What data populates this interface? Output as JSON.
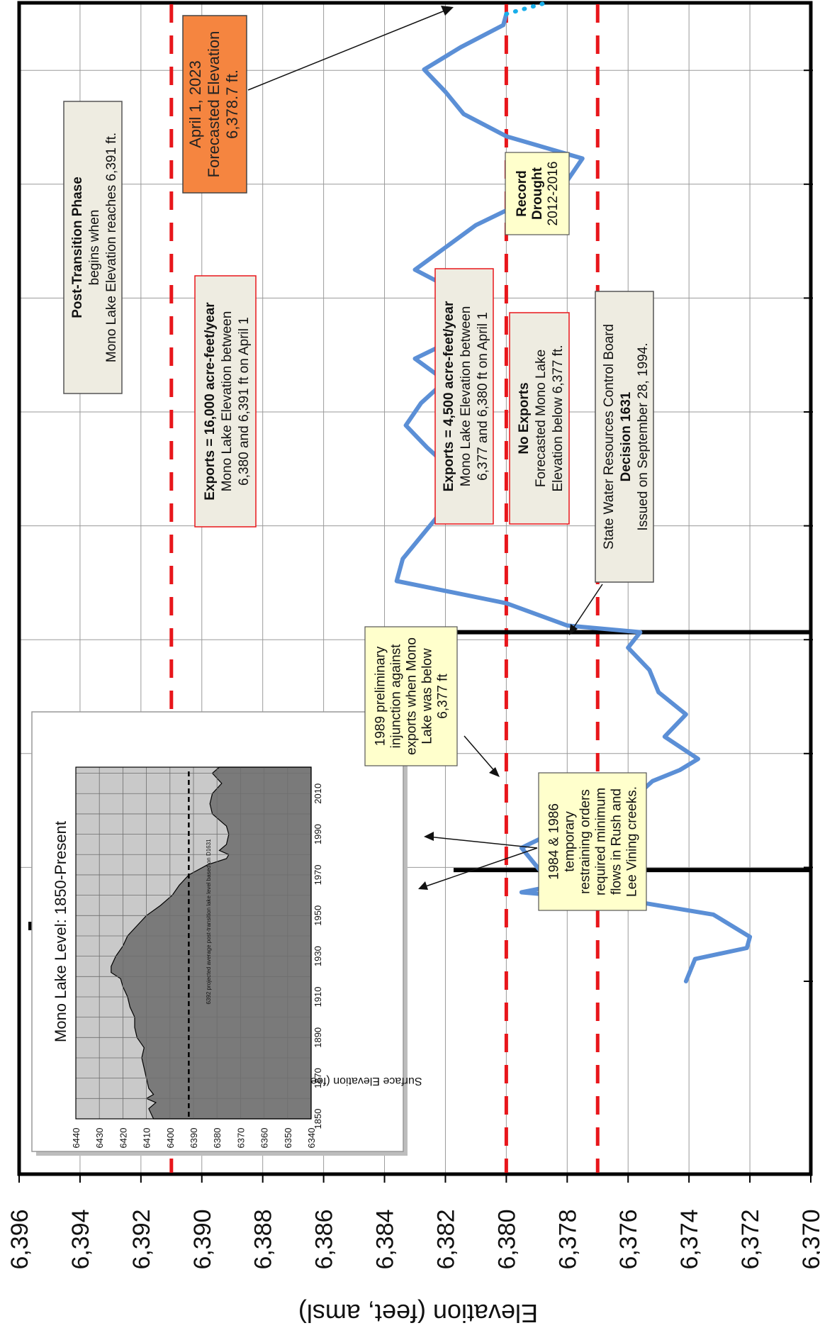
{
  "chart_data": {
    "type": "line",
    "orientation": "rotated-90-clockwise",
    "ylabel": "Elevation (feet, amsl)",
    "ylim": [
      6370,
      6396
    ],
    "y_ticks": [
      "6,370",
      "6,372",
      "6,374",
      "6,376",
      "6,378",
      "6,380",
      "6,382",
      "6,384",
      "6,386",
      "6,388",
      "6,390",
      "6,392",
      "6,394",
      "6,396"
    ],
    "xlim": [
      1979,
      2023
    ],
    "grid": true,
    "thresholds": [
      {
        "value": 6391,
        "style": "dashed",
        "color": "#e8161b"
      },
      {
        "value": 6380,
        "style": "dashed",
        "color": "#e8161b"
      },
      {
        "value": 6377,
        "style": "dashed",
        "color": "#e8161b"
      }
    ],
    "event_lines": [
      1984,
      1994.7
    ],
    "series": [
      {
        "color": "#5b8fd6",
        "x": [
          1979,
          1980,
          1980.5,
          1981,
          1982,
          1982.5,
          1983,
          1983.5,
          1984,
          1985,
          1986,
          1986.5,
          1987,
          1988,
          1988.5,
          1989,
          1990,
          1991,
          1992,
          1993,
          1994,
          1994.7,
          1995,
          1996,
          1997,
          1998,
          1999,
          2000,
          2001,
          2002,
          2003,
          2004,
          2005,
          2006,
          2007,
          2008,
          2009,
          2010,
          2011,
          2012,
          2013,
          2014,
          2015,
          2016,
          2017,
          2018,
          2019,
          2020,
          2021,
          2022,
          2022.5
        ],
        "values": [
          6374.1,
          6373.8,
          6372.1,
          6372.0,
          6373.2,
          6375.4,
          6379.5,
          6377.7,
          6378.9,
          6379.5,
          6378.0,
          6376.8,
          6376.0,
          6375.2,
          6374.3,
          6373.7,
          6374.8,
          6374.1,
          6375.0,
          6375.3,
          6376.0,
          6375.6,
          6378.0,
          6380.0,
          6383.6,
          6383.4,
          6382.8,
          6382.2,
          6381.0,
          6381.8,
          6382.6,
          6383.3,
          6382.8,
          6382.0,
          6383.0,
          6381.5,
          6381.0,
          6381.6,
          6383.0,
          6382.0,
          6381.0,
          6379.5,
          6378.0,
          6377.5,
          6380.0,
          6381.4,
          6382.0,
          6382.7,
          6381.5,
          6380.1,
          6380.0
        ]
      },
      {
        "color": "#19aeea",
        "style": "dotted",
        "x": [
          2022.5,
          2023
        ],
        "values": [
          6380.0,
          6378.7
        ]
      }
    ]
  },
  "annotations": {
    "post_transition": {
      "bold": "Post-Transition Phase",
      "line2": "begins when",
      "line3": "Mono Lake Elevation reaches 6,391 ft."
    },
    "forecast": {
      "line1": "April 1, 2023",
      "line2": "Forecasted Elevation",
      "line3": "6,378.7 ft."
    },
    "record_drought": {
      "line1": "Record",
      "line2": "Drought",
      "line3": "2012-2016"
    },
    "exports_16000": {
      "bold": "Exports = 16,000 acre-feet/year",
      "line2": "Mono Lake Elevation between",
      "line3": "6,380 and 6,391 ft on April 1"
    },
    "exports_4500": {
      "bold": "Exports = 4,500 acre-feet/year",
      "line2": "Mono Lake Elevation between",
      "line3": "6,377 and 6,380 ft on April 1"
    },
    "no_exports": {
      "bold": "No Exports",
      "line2": "Forecasted Mono Lake",
      "line3": "Elevation below 6,377 ft."
    },
    "decision": {
      "line1": "State Water Resources Control Board",
      "bold": "Decision 1631",
      "line3": "Issued on September 28, 1994."
    },
    "injunction": {
      "lines": [
        "1989 preliminary",
        "injunction against",
        "exports when Mono",
        "Lake was below",
        "6,377 ft"
      ]
    },
    "restraining": {
      "lines": [
        "1984 & 1986",
        "temporary",
        "restraining orders",
        "required minimum",
        "flows in Rush and",
        "Lee Vining creeks."
      ]
    }
  },
  "inset": {
    "title": "Mono Lake Level: 1850-Present",
    "ylabel": "Surface Elevation (feet)",
    "dashed_label": "6392 projected average post-transition lake level based on D1631",
    "y_ticks": [
      "6340",
      "6350",
      "6360",
      "6370",
      "6380",
      "6390",
      "6400",
      "6410",
      "6420",
      "6430",
      "6440"
    ],
    "x_ticks": [
      "1850",
      "1870",
      "1890",
      "1910",
      "1930",
      "1950",
      "1970",
      "1990",
      "2010"
    ],
    "chart_data": {
      "type": "area",
      "xlim": [
        1850,
        2023
      ],
      "ylim": [
        6340,
        6440
      ],
      "dashed_value": 6392,
      "x": [
        1850,
        1855,
        1858,
        1860,
        1862,
        1865,
        1870,
        1875,
        1880,
        1885,
        1890,
        1895,
        1900,
        1905,
        1910,
        1915,
        1919,
        1922,
        1925,
        1930,
        1935,
        1940,
        1945,
        1950,
        1955,
        1960,
        1965,
        1970,
        1975,
        1978,
        1980,
        1982,
        1985,
        1990,
        1994,
        1995,
        2000,
        2005,
        2010,
        2015,
        2020,
        2023
      ],
      "values": [
        6407,
        6409,
        6406,
        6410,
        6407,
        6409,
        6410,
        6411,
        6412,
        6411,
        6414,
        6415,
        6415,
        6417,
        6418,
        6420,
        6421,
        6425,
        6425,
        6423,
        6420,
        6418,
        6414,
        6410,
        6404,
        6399,
        6396,
        6392,
        6384,
        6376,
        6375,
        6379,
        6376,
        6375,
        6376,
        6377,
        6382,
        6383,
        6382,
        6378,
        6382,
        6379
      ]
    }
  }
}
